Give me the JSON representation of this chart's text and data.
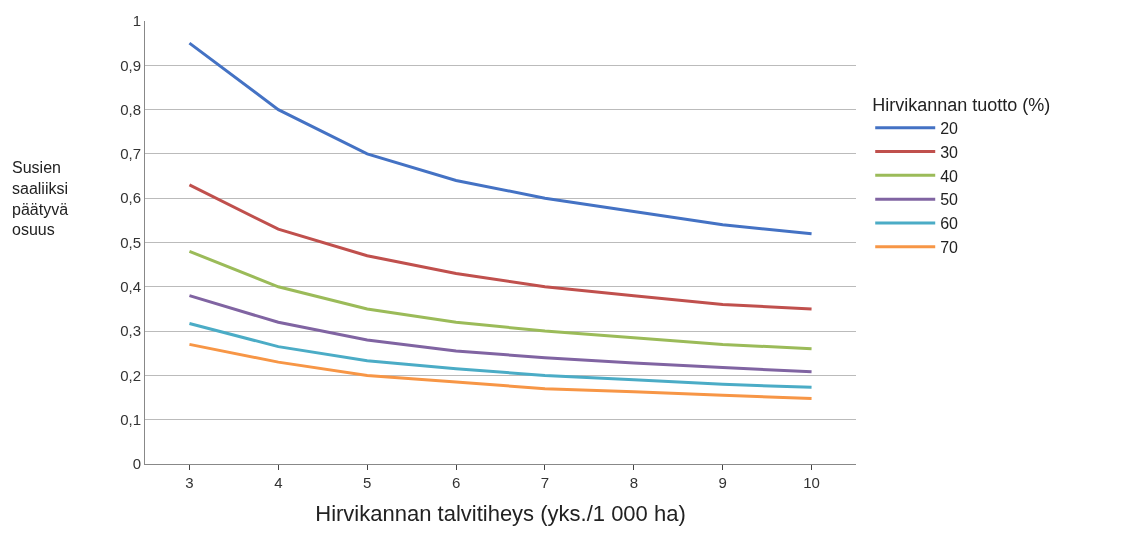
{
  "chart_data": {
    "type": "line",
    "xlabel": "Hirvikannan talvitiheys (yks./1 000 ha)",
    "ylabel": "Susien\nsaaliiksi\npäätyvä\nosuus",
    "legend_title": "Hirvikannan tuotto (%)",
    "categories": [
      "3",
      "4",
      "5",
      "6",
      "7",
      "8",
      "9",
      "10"
    ],
    "series": [
      {
        "name": "20",
        "color": "#4472c4",
        "values": [
          0.95,
          0.8,
          0.7,
          0.64,
          0.6,
          0.57,
          0.54,
          0.52
        ]
      },
      {
        "name": "30",
        "color": "#c0504d",
        "values": [
          0.63,
          0.53,
          0.47,
          0.43,
          0.4,
          0.38,
          0.36,
          0.35
        ]
      },
      {
        "name": "40",
        "color": "#9bbb59",
        "values": [
          0.48,
          0.4,
          0.35,
          0.32,
          0.3,
          0.285,
          0.27,
          0.26
        ]
      },
      {
        "name": "50",
        "color": "#8064a2",
        "values": [
          0.38,
          0.32,
          0.28,
          0.255,
          0.24,
          0.228,
          0.218,
          0.208
        ]
      },
      {
        "name": "60",
        "color": "#4bacc6",
        "values": [
          0.317,
          0.265,
          0.233,
          0.215,
          0.2,
          0.19,
          0.18,
          0.173
        ]
      },
      {
        "name": "70",
        "color": "#f79646",
        "values": [
          0.27,
          0.23,
          0.2,
          0.185,
          0.17,
          0.163,
          0.155,
          0.148
        ]
      }
    ],
    "ylim": [
      0,
      1
    ],
    "yticks": [
      0,
      {
        "value": 0.1,
        "label": "0,1"
      },
      {
        "value": 0.2,
        "label": "0,2"
      },
      {
        "value": 0.3,
        "label": "0,3"
      },
      {
        "value": 0.4,
        "label": "0,4"
      },
      {
        "value": 0.5,
        "label": "0,5"
      },
      {
        "value": 0.6,
        "label": "0,6"
      },
      {
        "value": 0.7,
        "label": "0,7"
      },
      {
        "value": 0.8,
        "label": "0,8"
      },
      {
        "value": 0.9,
        "label": "0,9"
      },
      1
    ],
    "grid": "y",
    "legend": "right",
    "marker": "none",
    "line_style": "solid"
  }
}
